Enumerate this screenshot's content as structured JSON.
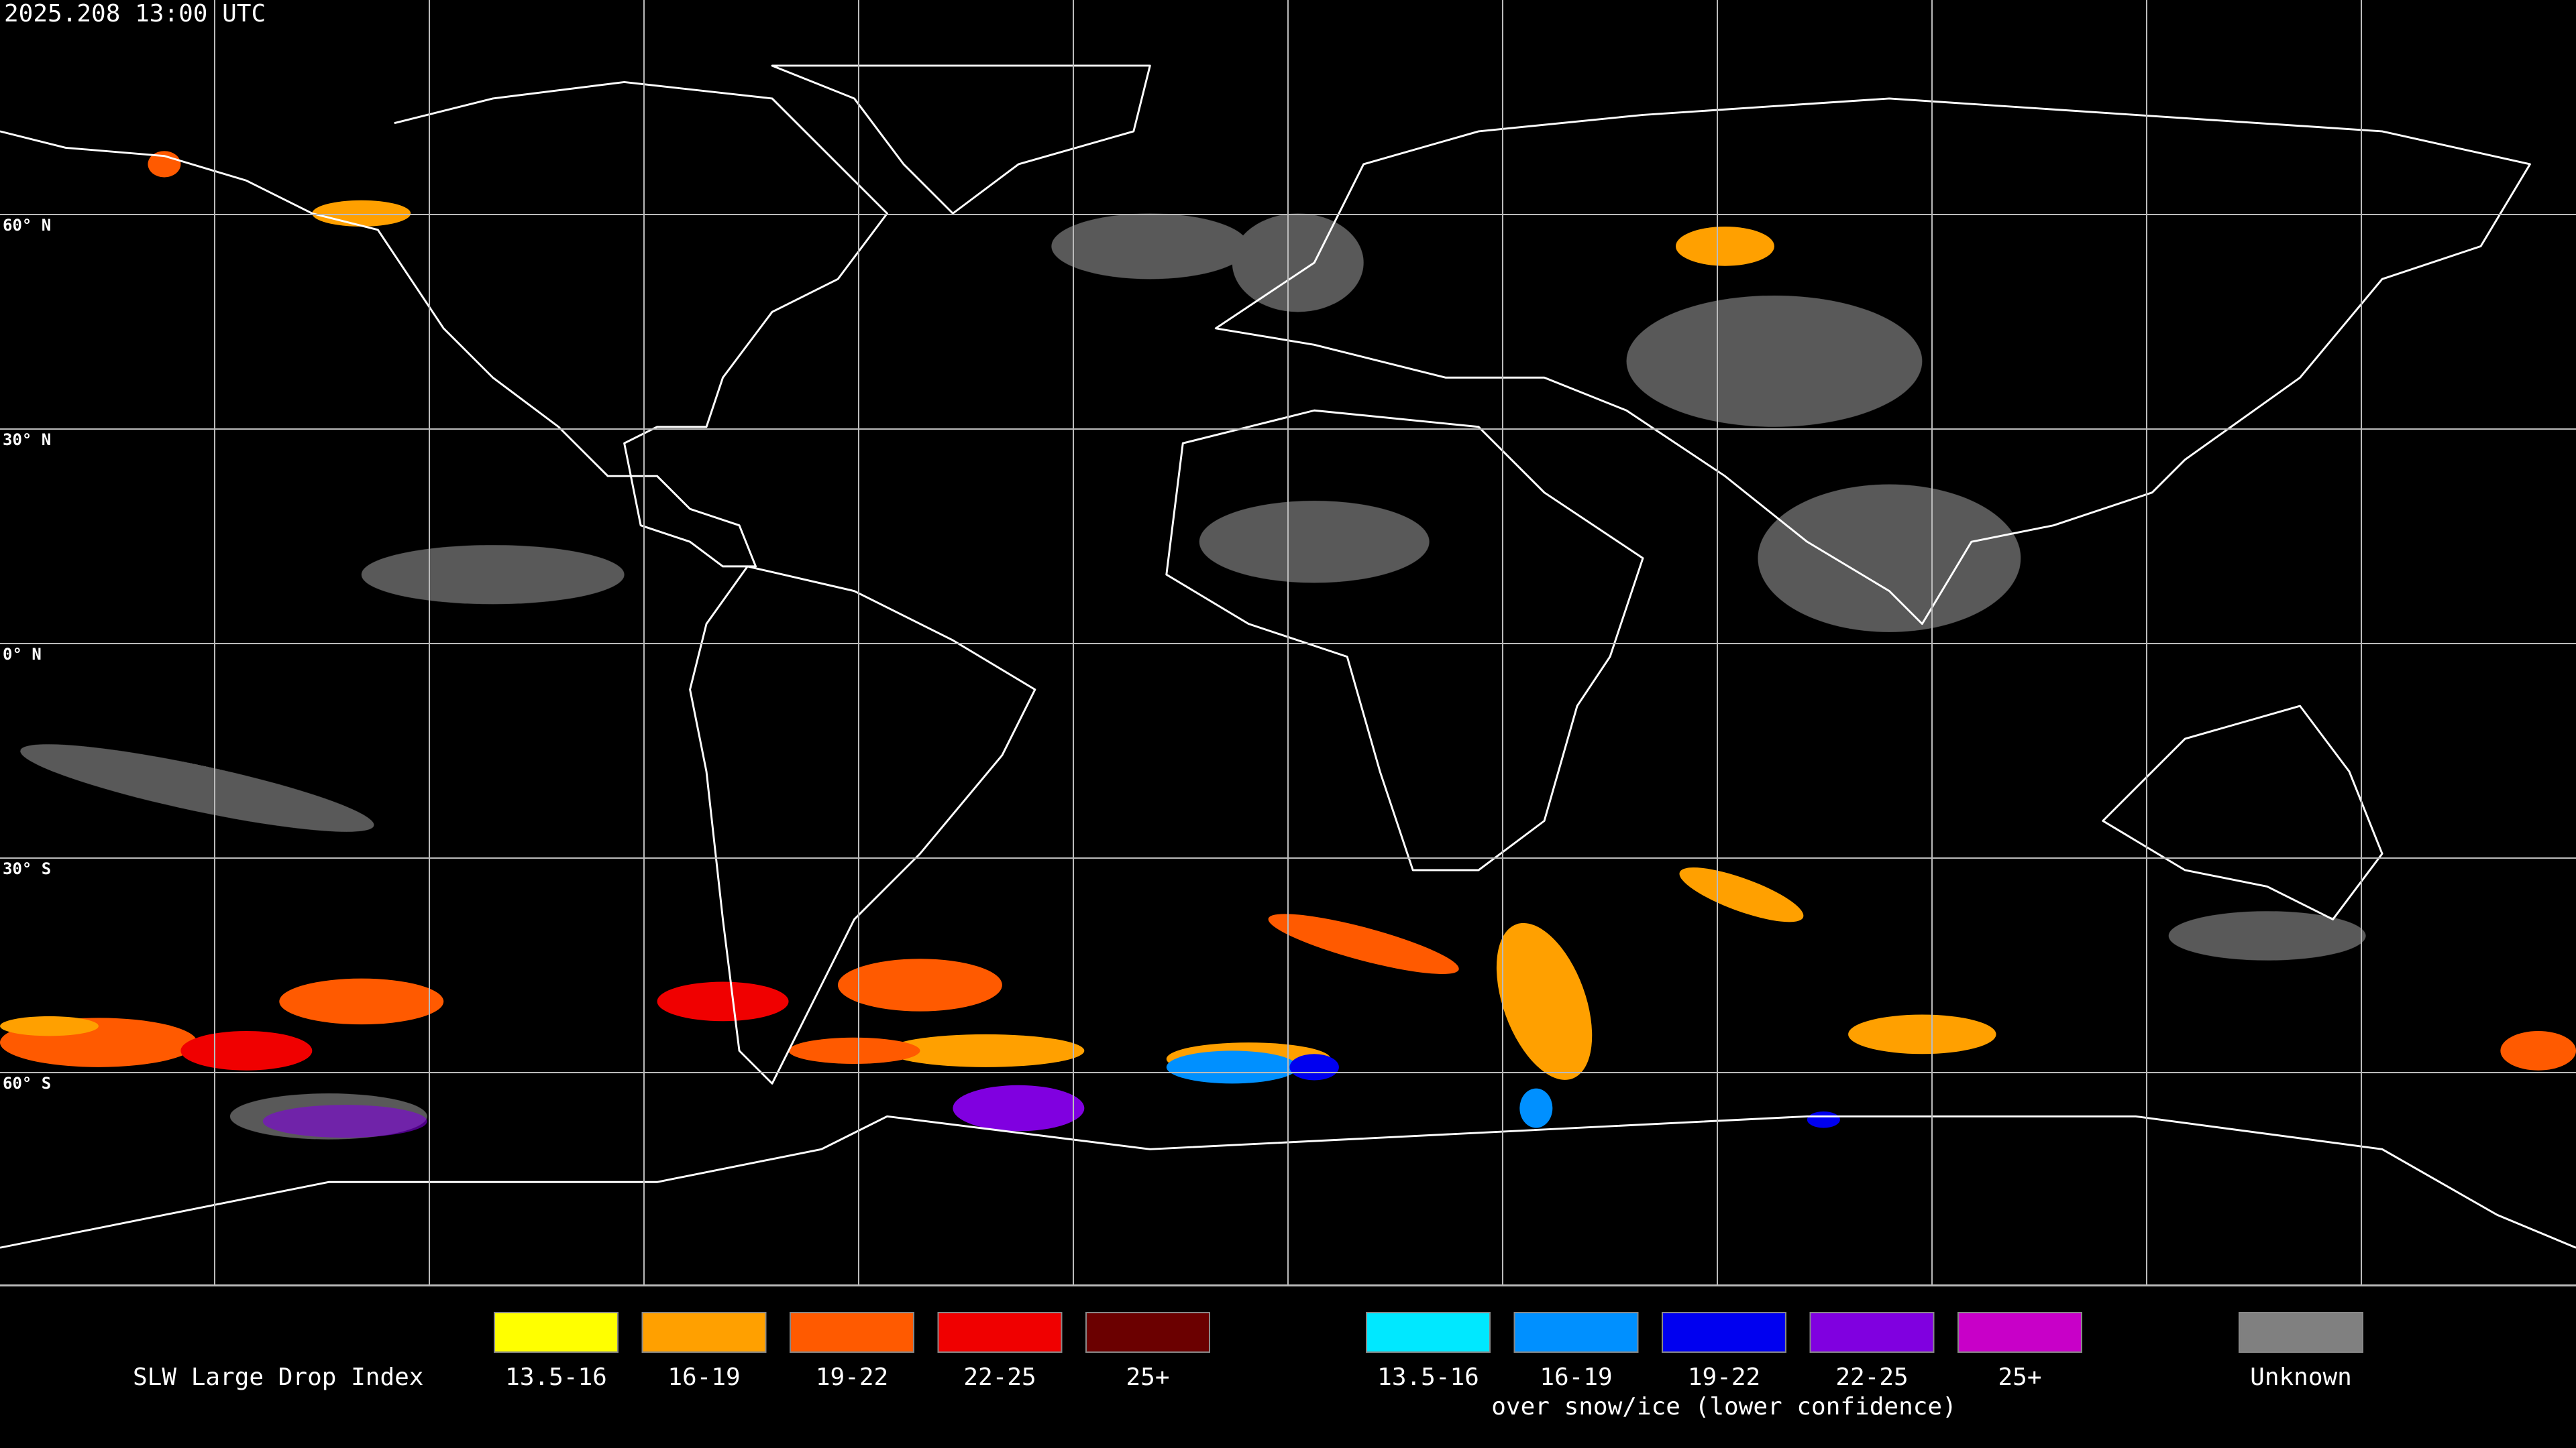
{
  "timestamp": "2025.208 13:00 UTC",
  "latitude_labels": [
    "60° N",
    "30° N",
    "0° N",
    "30° S",
    "60° S"
  ],
  "legend": {
    "title": "SLW Large Drop Index",
    "groups": [
      {
        "items": [
          {
            "label": "13.5-16",
            "color": "#ffff00"
          },
          {
            "label": "16-19",
            "color": "#ffa000"
          },
          {
            "label": "19-22",
            "color": "#ff5a00"
          },
          {
            "label": "22-25",
            "color": "#f00000"
          },
          {
            "label": "25+",
            "color": "#6b0000"
          }
        ]
      },
      {
        "note": "over snow/ice (lower confidence)",
        "items": [
          {
            "label": "13.5-16",
            "color": "#00e8ff"
          },
          {
            "label": "16-19",
            "color": "#0090ff"
          },
          {
            "label": "19-22",
            "color": "#0000f0"
          },
          {
            "label": "22-25",
            "color": "#8000e0"
          },
          {
            "label": "25+",
            "color": "#c800c8"
          }
        ]
      },
      {
        "items": [
          {
            "label": "Unknown",
            "color": "#808080"
          }
        ]
      }
    ]
  }
}
